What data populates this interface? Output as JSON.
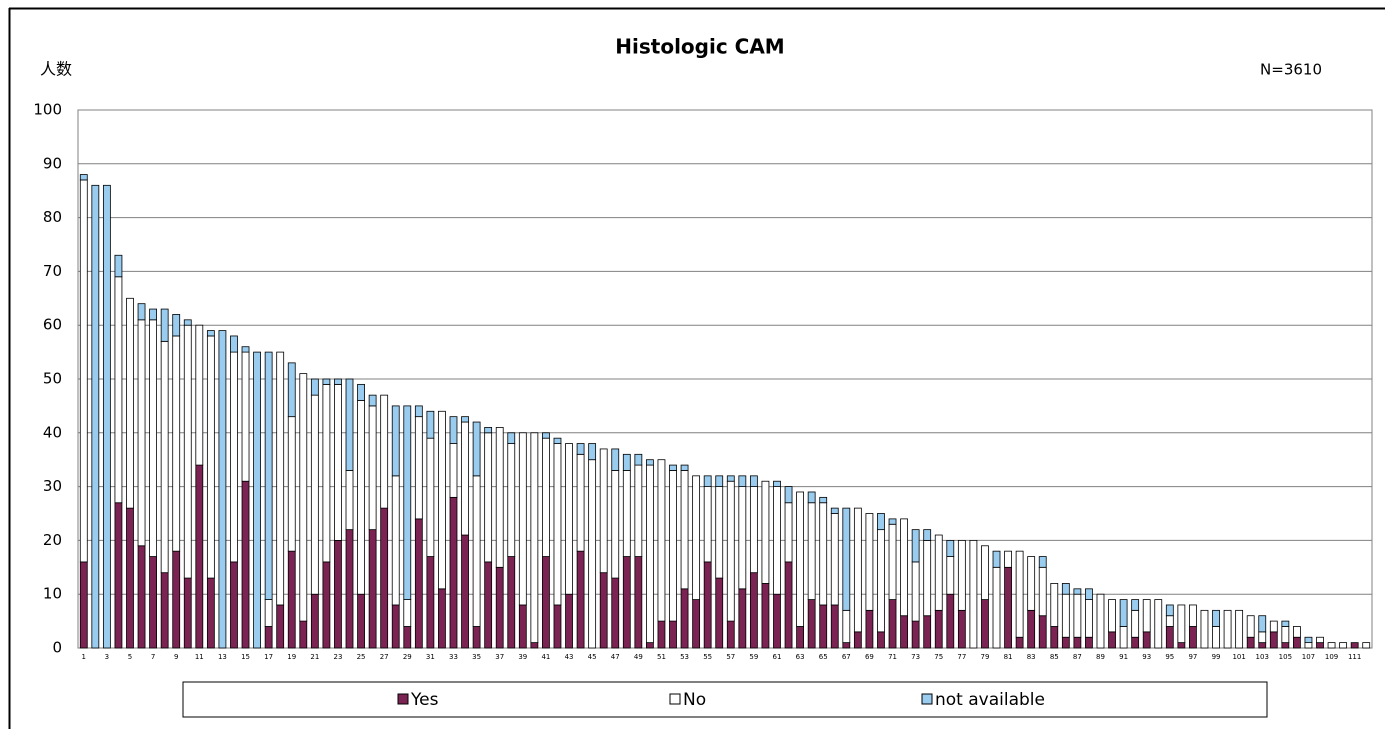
{
  "chart_data": {
    "type": "stacked-bar",
    "title": "Histologic CAM",
    "y_label": "人数",
    "annotation": "N=3610",
    "categories": [
      "1",
      null,
      "3",
      null,
      "5",
      null,
      "7",
      null,
      "9",
      null,
      "11",
      null,
      "13",
      null,
      "15",
      null,
      "17",
      null,
      "19",
      null,
      "21",
      null,
      "23",
      null,
      "25",
      null,
      "27",
      null,
      "29",
      null,
      "31",
      null,
      "33",
      null,
      "35",
      null,
      "37",
      null,
      "39",
      null,
      "41",
      null,
      "43",
      null,
      "45",
      null,
      "47",
      null,
      "49",
      null,
      "51",
      null,
      "53",
      null,
      "55",
      null,
      "57",
      null,
      "59",
      null,
      "61",
      null,
      "63",
      null,
      "65",
      null,
      "67",
      null,
      "69",
      null,
      "71",
      null,
      "73",
      null,
      "75",
      null,
      "77",
      null,
      "79",
      null,
      "81",
      null,
      "83",
      null,
      "85",
      null,
      "87",
      null,
      "89",
      null,
      "91",
      null,
      "93",
      null,
      "95",
      null,
      "97",
      null,
      "99",
      null,
      "101",
      null,
      "103",
      null,
      "105",
      null,
      "107",
      null,
      "109",
      null,
      "111",
      null
    ],
    "series": [
      {
        "name": "Yes",
        "color": "#7b2352",
        "values": [
          16,
          0,
          0,
          27,
          26,
          19,
          17,
          14,
          18,
          13,
          34,
          13,
          0,
          16,
          31,
          0,
          4,
          8,
          18,
          5,
          10,
          16,
          20,
          22,
          10,
          22,
          26,
          8,
          4,
          24,
          17,
          11,
          28,
          21,
          4,
          16,
          15,
          17,
          8,
          1,
          17,
          8,
          10,
          18,
          0,
          14,
          13,
          17,
          17,
          1,
          5,
          5,
          11,
          9,
          16,
          13,
          5,
          11,
          14,
          12,
          10,
          16,
          4,
          9,
          8,
          8,
          1,
          3,
          7,
          3,
          9,
          6,
          5,
          6,
          7,
          10,
          7,
          0,
          9,
          0,
          15,
          2,
          7,
          6,
          4,
          2,
          2,
          2,
          0,
          3,
          0,
          2,
          3,
          0,
          4,
          1,
          4,
          0,
          0,
          0,
          0,
          2,
          1,
          3,
          1,
          2,
          0,
          1,
          0,
          0,
          1,
          0
        ]
      },
      {
        "name": "No",
        "color": "#ffffff",
        "values": [
          71,
          0,
          0,
          42,
          39,
          42,
          44,
          43,
          40,
          47,
          26,
          45,
          0,
          39,
          24,
          0,
          5,
          47,
          25,
          46,
          37,
          33,
          29,
          11,
          36,
          23,
          21,
          24,
          5,
          19,
          22,
          33,
          10,
          21,
          28,
          24,
          26,
          21,
          32,
          39,
          22,
          30,
          28,
          18,
          35,
          23,
          20,
          16,
          17,
          33,
          30,
          28,
          22,
          23,
          14,
          17,
          26,
          19,
          16,
          19,
          20,
          11,
          25,
          18,
          19,
          17,
          6,
          23,
          18,
          19,
          14,
          18,
          11,
          14,
          14,
          7,
          13,
          20,
          10,
          15,
          3,
          16,
          10,
          9,
          8,
          8,
          8,
          7,
          10,
          6,
          4,
          5,
          6,
          9,
          2,
          7,
          4,
          7,
          4,
          7,
          7,
          4,
          2,
          2,
          3,
          2,
          1,
          1,
          1,
          1,
          0,
          1
        ]
      },
      {
        "name": "not available",
        "color": "#99ccee",
        "values": [
          1,
          86,
          86,
          4,
          0,
          3,
          2,
          6,
          4,
          1,
          0,
          1,
          59,
          3,
          1,
          55,
          46,
          0,
          10,
          0,
          3,
          1,
          1,
          17,
          3,
          2,
          0,
          13,
          36,
          2,
          5,
          0,
          5,
          1,
          10,
          1,
          0,
          2,
          0,
          0,
          1,
          1,
          0,
          2,
          3,
          0,
          4,
          3,
          2,
          1,
          0,
          1,
          1,
          0,
          2,
          2,
          1,
          2,
          2,
          0,
          1,
          3,
          0,
          2,
          1,
          1,
          19,
          0,
          0,
          3,
          1,
          0,
          6,
          2,
          0,
          3,
          0,
          0,
          0,
          3,
          0,
          0,
          0,
          2,
          0,
          2,
          1,
          2,
          0,
          0,
          5,
          2,
          0,
          0,
          2,
          0,
          0,
          0,
          3,
          0,
          0,
          0,
          3,
          0,
          1,
          0,
          1,
          0,
          0,
          0,
          0,
          0
        ]
      }
    ],
    "ylim": [
      0,
      100
    ],
    "yticks": [
      0,
      10,
      20,
      30,
      40,
      50,
      60,
      70,
      80,
      90,
      100
    ],
    "grid": true,
    "legend": "bottom"
  }
}
